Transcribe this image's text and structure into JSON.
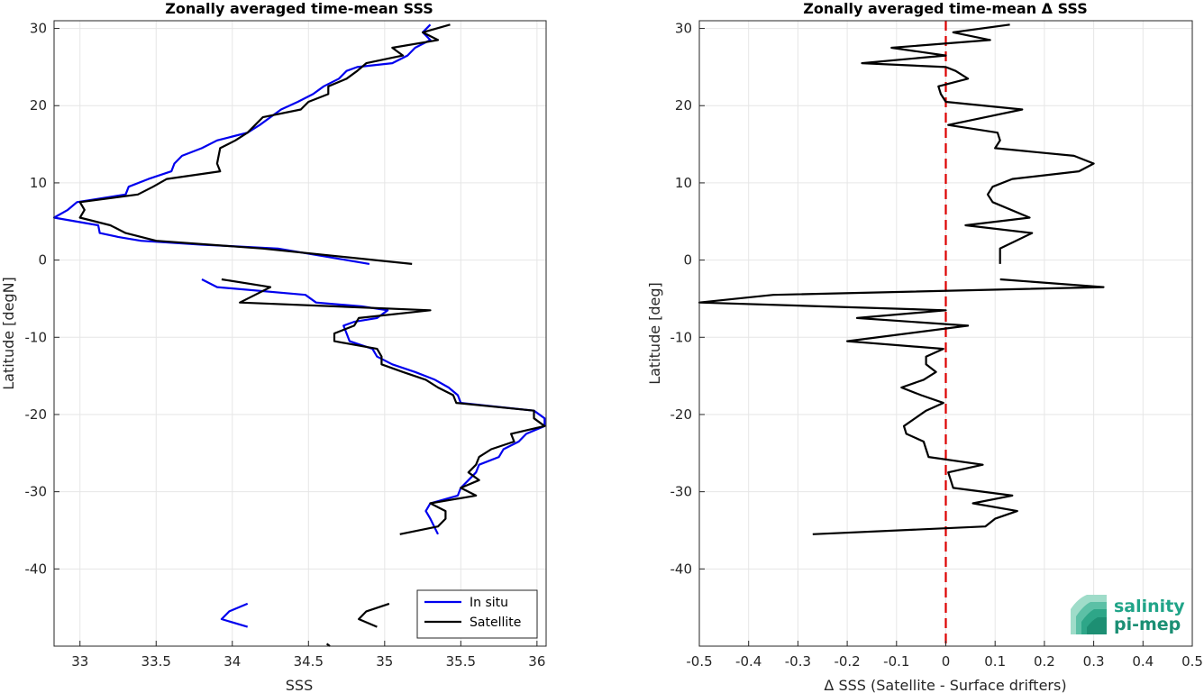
{
  "chart_data": [
    {
      "type": "line",
      "title": "Zonally averaged time-mean SSS",
      "xlabel": "SSS",
      "ylabel": "Latitude [degN]",
      "xlim": [
        32.83,
        36.06
      ],
      "ylim": [
        -50,
        31
      ],
      "xticks": [
        33,
        33.5,
        34,
        34.5,
        35,
        35.5,
        36
      ],
      "xtick_labels": [
        "33",
        "33.5",
        "34",
        "34.5",
        "35",
        "35.5",
        "36"
      ],
      "yticks": [
        30,
        20,
        10,
        0,
        -10,
        -20,
        -30,
        -40
      ],
      "ytick_labels": [
        "30",
        "20",
        "10",
        "0",
        "-10",
        "-20",
        "-30",
        "-40"
      ],
      "grid": true,
      "legend": {
        "position": "bottom-right"
      },
      "series": [
        {
          "name": "In situ",
          "color": "#0000ee",
          "segments": [
            [
              [
                35.3,
                30.5
              ],
              [
                35.25,
                29.5
              ],
              [
                35.3,
                28.5
              ],
              [
                35.2,
                27.5
              ],
              [
                35.15,
                26.5
              ],
              [
                35.05,
                25.5
              ],
              [
                34.82,
                25
              ],
              [
                34.75,
                24.5
              ],
              [
                34.7,
                23.5
              ],
              [
                34.6,
                22.5
              ],
              [
                34.53,
                21.5
              ],
              [
                34.43,
                20.5
              ],
              [
                34.32,
                19.5
              ],
              [
                34.25,
                18.5
              ],
              [
                34.18,
                17.5
              ],
              [
                34.1,
                16.5
              ],
              [
                34.0,
                16.0
              ],
              [
                33.9,
                15.5
              ],
              [
                33.8,
                14.5
              ],
              [
                33.67,
                13.5
              ],
              [
                33.62,
                12.5
              ],
              [
                33.6,
                11.5
              ],
              [
                33.45,
                10.5
              ],
              [
                33.32,
                9.5
              ],
              [
                33.3,
                8.5
              ],
              [
                32.98,
                7.5
              ],
              [
                32.92,
                6.5
              ],
              [
                32.83,
                5.5
              ],
              [
                33.12,
                4.5
              ],
              [
                33.13,
                3.5
              ],
              [
                33.25,
                3.0
              ],
              [
                33.4,
                2.5
              ],
              [
                33.8,
                2.0
              ],
              [
                34.3,
                1.5
              ],
              [
                34.9,
                -0.5
              ]
            ],
            [
              [
                33.8,
                -2.5
              ],
              [
                33.9,
                -3.5
              ],
              [
                34.48,
                -4.5
              ],
              [
                34.55,
                -5.5
              ],
              [
                34.85,
                -6.0
              ],
              [
                35.02,
                -6.5
              ],
              [
                34.95,
                -7.5
              ],
              [
                34.8,
                -8.0
              ],
              [
                34.73,
                -8.5
              ],
              [
                34.75,
                -9.5
              ],
              [
                34.77,
                -10.5
              ],
              [
                34.92,
                -11.5
              ],
              [
                34.95,
                -12.5
              ],
              [
                35.05,
                -13.5
              ],
              [
                35.2,
                -14.5
              ],
              [
                35.33,
                -15.5
              ],
              [
                35.42,
                -16.5
              ],
              [
                35.48,
                -17.5
              ],
              [
                35.5,
                -18.5
              ],
              [
                35.98,
                -19.5
              ],
              [
                36.05,
                -20.5
              ],
              [
                36.05,
                -21.5
              ],
              [
                35.93,
                -22.5
              ],
              [
                35.88,
                -23.5
              ],
              [
                35.78,
                -24.5
              ],
              [
                35.75,
                -25.5
              ],
              [
                35.62,
                -26.5
              ],
              [
                35.6,
                -27.5
              ],
              [
                35.55,
                -28.5
              ],
              [
                35.5,
                -29.5
              ],
              [
                35.48,
                -30.5
              ],
              [
                35.3,
                -31.5
              ],
              [
                35.27,
                -32.5
              ],
              [
                35.3,
                -33.5
              ],
              [
                35.35,
                -35.5
              ]
            ],
            [
              [
                34.1,
                -44.5
              ],
              [
                33.98,
                -45.5
              ],
              [
                33.93,
                -46.5
              ],
              [
                34.1,
                -47.5
              ]
            ]
          ]
        },
        {
          "name": "Satellite",
          "color": "#000000",
          "segments": [
            [
              [
                35.43,
                30.5
              ],
              [
                35.25,
                29.5
              ],
              [
                35.35,
                28.5
              ],
              [
                35.05,
                27.5
              ],
              [
                35.12,
                26.5
              ],
              [
                34.88,
                25.5
              ],
              [
                34.82,
                24.5
              ],
              [
                34.75,
                23.5
              ],
              [
                34.63,
                22.5
              ],
              [
                34.63,
                21.5
              ],
              [
                34.5,
                20.5
              ],
              [
                34.45,
                19.5
              ],
              [
                34.2,
                18.5
              ],
              [
                34.15,
                17.5
              ],
              [
                34.1,
                16.5
              ],
              [
                34.02,
                15.5
              ],
              [
                33.92,
                14.5
              ],
              [
                33.91,
                13.5
              ],
              [
                33.9,
                12.5
              ],
              [
                33.92,
                11.5
              ],
              [
                33.57,
                10.5
              ],
              [
                33.48,
                9.5
              ],
              [
                33.38,
                8.5
              ],
              [
                33.0,
                7.5
              ],
              [
                33.03,
                6.5
              ],
              [
                33.0,
                5.5
              ],
              [
                33.2,
                4.5
              ],
              [
                33.3,
                3.5
              ],
              [
                33.5,
                2.5
              ],
              [
                34.2,
                1.5
              ],
              [
                35.18,
                -0.5
              ]
            ],
            [
              [
                33.93,
                -2.5
              ],
              [
                34.25,
                -3.5
              ],
              [
                34.15,
                -4.5
              ],
              [
                34.05,
                -5.5
              ],
              [
                35.3,
                -6.5
              ],
              [
                34.83,
                -7.5
              ],
              [
                34.8,
                -8.5
              ],
              [
                34.67,
                -9.5
              ],
              [
                34.67,
                -10.5
              ],
              [
                34.95,
                -11.5
              ],
              [
                34.98,
                -12.5
              ],
              [
                34.98,
                -13.5
              ],
              [
                35.12,
                -14.5
              ],
              [
                35.27,
                -15.5
              ],
              [
                35.35,
                -16.5
              ],
              [
                35.45,
                -17.5
              ],
              [
                35.47,
                -18.5
              ],
              [
                35.98,
                -19.5
              ],
              [
                35.98,
                -20.5
              ],
              [
                36.05,
                -21.5
              ],
              [
                35.83,
                -22.5
              ],
              [
                35.85,
                -23.5
              ],
              [
                35.7,
                -24.5
              ],
              [
                35.62,
                -25.5
              ],
              [
                35.6,
                -26.5
              ],
              [
                35.55,
                -27.5
              ],
              [
                35.62,
                -28.5
              ],
              [
                35.5,
                -29.5
              ],
              [
                35.6,
                -30.5
              ],
              [
                35.3,
                -31.5
              ],
              [
                35.4,
                -32.5
              ],
              [
                35.4,
                -33.5
              ],
              [
                35.35,
                -34.5
              ],
              [
                35.1,
                -35.5
              ]
            ],
            [
              [
                35.03,
                -44.5
              ],
              [
                34.88,
                -45.5
              ],
              [
                34.83,
                -46.5
              ],
              [
                34.95,
                -47.5
              ]
            ],
            [
              [
                34.62,
                -49.7
              ],
              [
                34.64,
                -50
              ]
            ]
          ]
        }
      ]
    },
    {
      "type": "line",
      "title": "Zonally averaged time-mean Δ SSS",
      "xlabel": "Δ SSS (Satellite - Surface drifters)",
      "ylabel": "Latitude [deg]",
      "xlim": [
        -0.5,
        0.5
      ],
      "ylim": [
        -50,
        31
      ],
      "xticks": [
        -0.5,
        -0.4,
        -0.3,
        -0.2,
        -0.1,
        0,
        0.1,
        0.2,
        0.3,
        0.4,
        0.5
      ],
      "xtick_labels": [
        "-0.5",
        "-0.4",
        "-0.3",
        "-0.2",
        "-0.1",
        "0",
        "0.1",
        "0.2",
        "0.3",
        "0.4",
        "0.5"
      ],
      "yticks": [
        30,
        20,
        10,
        0,
        -10,
        -20,
        -30,
        -40
      ],
      "ytick_labels": [
        "30",
        "20",
        "10",
        "0",
        "-10",
        "-20",
        "-30",
        "-40"
      ],
      "grid": true,
      "reference_line": {
        "x": 0,
        "color": "#dd0000",
        "style": "dashed"
      },
      "series": [
        {
          "name": "",
          "color": "#000000",
          "segments": [
            [
              [
                0.13,
                30.5
              ],
              [
                0.015,
                29.5
              ],
              [
                0.09,
                28.5
              ],
              [
                -0.11,
                27.5
              ],
              [
                0.0,
                26.5
              ],
              [
                -0.17,
                25.5
              ],
              [
                0.0,
                25.0
              ],
              [
                0.02,
                24.5
              ],
              [
                0.045,
                23.5
              ],
              [
                -0.015,
                22.5
              ],
              [
                -0.01,
                21.5
              ],
              [
                0.0,
                20.5
              ],
              [
                0.155,
                19.5
              ],
              [
                0.005,
                17.5
              ],
              [
                0.105,
                16.5
              ],
              [
                0.11,
                15.5
              ],
              [
                0.1,
                14.5
              ],
              [
                0.26,
                13.5
              ],
              [
                0.3,
                12.5
              ],
              [
                0.27,
                11.5
              ],
              [
                0.135,
                10.5
              ],
              [
                0.095,
                9.5
              ],
              [
                0.085,
                8.5
              ],
              [
                0.095,
                7.5
              ],
              [
                0.17,
                5.5
              ],
              [
                0.04,
                4.5
              ],
              [
                0.175,
                3.5
              ],
              [
                0.11,
                1.5
              ],
              [
                0.11,
                0.5
              ],
              [
                0.11,
                -0.5
              ]
            ],
            [
              [
                0.11,
                -2.5
              ],
              [
                0.32,
                -3.5
              ],
              [
                -0.35,
                -4.5
              ],
              [
                -0.5,
                -5.5
              ],
              [
                0.0,
                -6.5
              ],
              [
                -0.18,
                -7.5
              ],
              [
                0.045,
                -8.5
              ],
              [
                -0.2,
                -10.5
              ],
              [
                -0.005,
                -11.5
              ],
              [
                -0.04,
                -12.5
              ],
              [
                -0.04,
                -13.5
              ],
              [
                -0.02,
                -14.5
              ],
              [
                -0.045,
                -15.5
              ],
              [
                -0.09,
                -16.5
              ],
              [
                -0.05,
                -17.5
              ],
              [
                -0.005,
                -18.5
              ],
              [
                -0.04,
                -19.5
              ],
              [
                -0.085,
                -21.5
              ],
              [
                -0.08,
                -22.5
              ],
              [
                -0.045,
                -23.5
              ],
              [
                -0.04,
                -24.5
              ],
              [
                -0.035,
                -25.5
              ],
              [
                0.075,
                -26.5
              ],
              [
                0.005,
                -27.5
              ],
              [
                0.01,
                -28.5
              ],
              [
                0.015,
                -29.5
              ],
              [
                0.135,
                -30.5
              ],
              [
                0.055,
                -31.5
              ],
              [
                0.145,
                -32.5
              ],
              [
                0.1,
                -33.5
              ],
              [
                0.08,
                -34.5
              ],
              [
                -0.27,
                -35.5
              ]
            ]
          ]
        }
      ]
    }
  ],
  "logo": {
    "line1": "salinity",
    "line2": "pi-mep"
  }
}
